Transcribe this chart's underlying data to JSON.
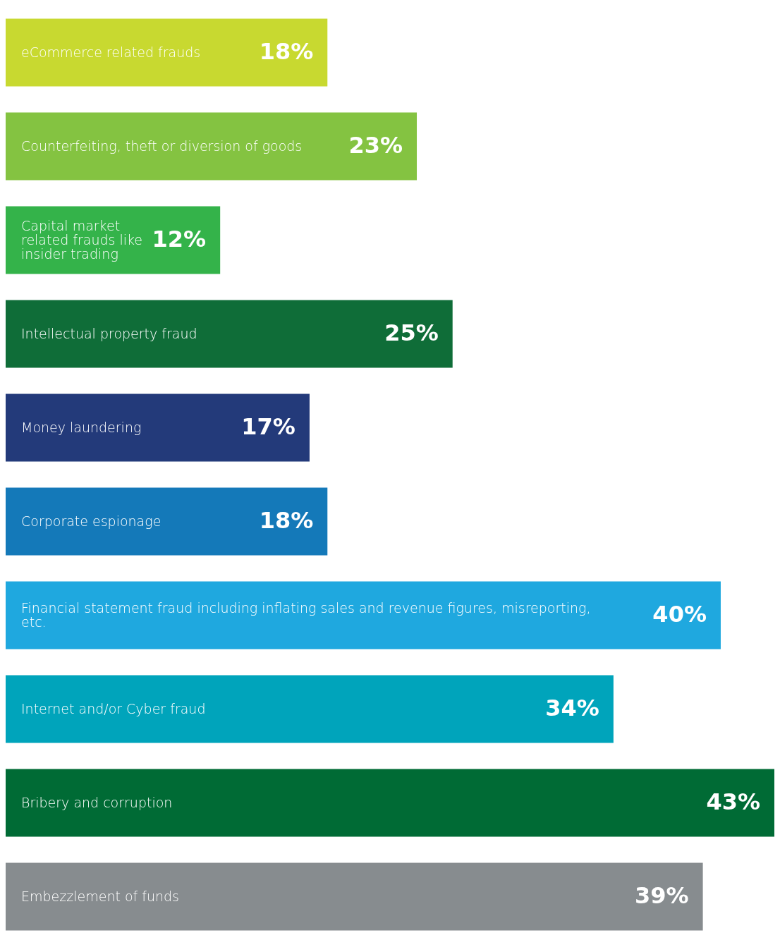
{
  "chart_data": {
    "type": "bar",
    "orientation": "horizontal",
    "categories": [
      "eCommerce related frauds",
      "Counterfeiting, theft or diversion of goods",
      "Capital market related frauds like insider trading",
      "Intellectual property fraud",
      "Money laundering",
      "Corporate espionage",
      "Financial statement fraud including inflating sales and revenue figures, misreporting, etc.",
      "Internet and/or Cyber fraud",
      "Bribery and corruption",
      "Embezzlement of funds"
    ],
    "values": [
      18,
      23,
      12,
      25,
      17,
      18,
      40,
      34,
      43,
      39
    ],
    "value_labels": [
      "18%",
      "23%",
      "12%",
      "25%",
      "17%",
      "18%",
      "40%",
      "34%",
      "43%",
      "39%"
    ],
    "colors": [
      "#c8d930",
      "#84c341",
      "#34b34a",
      "#0f6d38",
      "#233a7a",
      "#1479b9",
      "#1fa8df",
      "#00a4bb",
      "#006b35",
      "#878c8f"
    ]
  }
}
